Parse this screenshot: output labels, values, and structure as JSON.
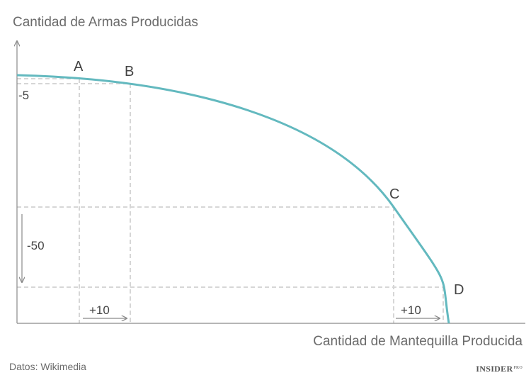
{
  "colors": {
    "curve": "#63b9bf",
    "axis": "#8a8a8a",
    "guide": "#d6d6d6",
    "text": "#6b6b6b",
    "label": "#444444"
  },
  "chart_data": {
    "type": "line",
    "title": "",
    "xlabel": "Cantidad de Mantequilla Producida",
    "ylabel": "Cantidad de Armas Producidas",
    "series": [
      {
        "shape": "concave production-possibility frontier"
      }
    ],
    "points": [
      {
        "label": "A"
      },
      {
        "label": "B"
      },
      {
        "label": "C"
      },
      {
        "label": "D"
      }
    ],
    "annotations": {
      "y_change_ab": "-5",
      "y_change_cd": "-50",
      "x_change_ab": "+10",
      "x_change_cd": "+10"
    }
  },
  "footer": {
    "source": "Datos: Wikimedia",
    "brand": "INSIDER",
    "brand_sup": "PRO"
  }
}
